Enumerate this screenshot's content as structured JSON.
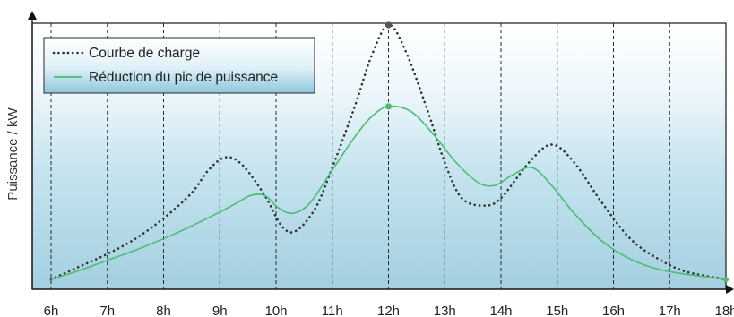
{
  "chart_data": {
    "type": "line",
    "title": "",
    "xlabel": "",
    "ylabel": "Puissance / kW",
    "categories": [
      "6h",
      "7h",
      "8h",
      "9h",
      "10h",
      "11h",
      "12h",
      "13h",
      "14h",
      "15h",
      "16h",
      "17h",
      "18h"
    ],
    "x_range": [
      6,
      18
    ],
    "y_range": [
      0,
      100
    ],
    "grid": "vertical dashed lines at each hour",
    "legend_position": "top-left",
    "series": [
      {
        "name": "Courbe de charge",
        "style": "dotted",
        "color": "#333333",
        "points": [
          [
            6,
            0
          ],
          [
            6.5,
            5
          ],
          [
            7,
            10
          ],
          [
            7.5,
            16
          ],
          [
            8,
            24
          ],
          [
            8.5,
            34
          ],
          [
            8.8,
            43
          ],
          [
            9.1,
            48
          ],
          [
            9.4,
            45
          ],
          [
            9.8,
            33
          ],
          [
            10.1,
            21
          ],
          [
            10.35,
            19
          ],
          [
            10.7,
            28
          ],
          [
            11,
            44
          ],
          [
            11.4,
            68
          ],
          [
            11.7,
            88
          ],
          [
            12,
            100
          ],
          [
            12.3,
            90
          ],
          [
            12.7,
            66
          ],
          [
            13,
            46
          ],
          [
            13.3,
            32
          ],
          [
            13.7,
            29
          ],
          [
            14,
            32
          ],
          [
            14.5,
            46
          ],
          [
            14.9,
            53
          ],
          [
            15.3,
            46
          ],
          [
            15.8,
            30
          ],
          [
            16.3,
            16
          ],
          [
            16.8,
            8
          ],
          [
            17.3,
            3
          ],
          [
            18,
            0
          ]
        ]
      },
      {
        "name": "Réduction du pic de puissance",
        "style": "solid",
        "color": "#4cbc72",
        "points": [
          [
            6,
            0
          ],
          [
            6.5,
            3.5
          ],
          [
            7,
            7.5
          ],
          [
            7.5,
            11.5
          ],
          [
            8,
            16
          ],
          [
            8.5,
            21
          ],
          [
            9,
            26.5
          ],
          [
            9.3,
            30
          ],
          [
            9.55,
            33
          ],
          [
            9.8,
            33
          ],
          [
            10.05,
            28
          ],
          [
            10.3,
            26
          ],
          [
            10.6,
            30
          ],
          [
            11,
            43
          ],
          [
            11.4,
            56
          ],
          [
            11.7,
            64
          ],
          [
            12,
            68
          ],
          [
            12.4,
            66
          ],
          [
            12.8,
            57
          ],
          [
            13.2,
            46
          ],
          [
            13.6,
            38
          ],
          [
            13.9,
            37
          ],
          [
            14.2,
            41
          ],
          [
            14.55,
            44
          ],
          [
            14.9,
            37
          ],
          [
            15.3,
            26
          ],
          [
            15.8,
            15
          ],
          [
            16.3,
            8
          ],
          [
            16.8,
            4
          ],
          [
            17.3,
            2
          ],
          [
            18,
            0
          ]
        ]
      }
    ]
  },
  "colors": {
    "background_top": "#ffffff",
    "background_bottom": "#a3cfe0",
    "dotted_line": "#333333",
    "solid_line": "#4cbc72",
    "grid": "#2a2a2a",
    "peak_marker_dotted": "#555555",
    "peak_marker_solid": "#4cbc72"
  }
}
